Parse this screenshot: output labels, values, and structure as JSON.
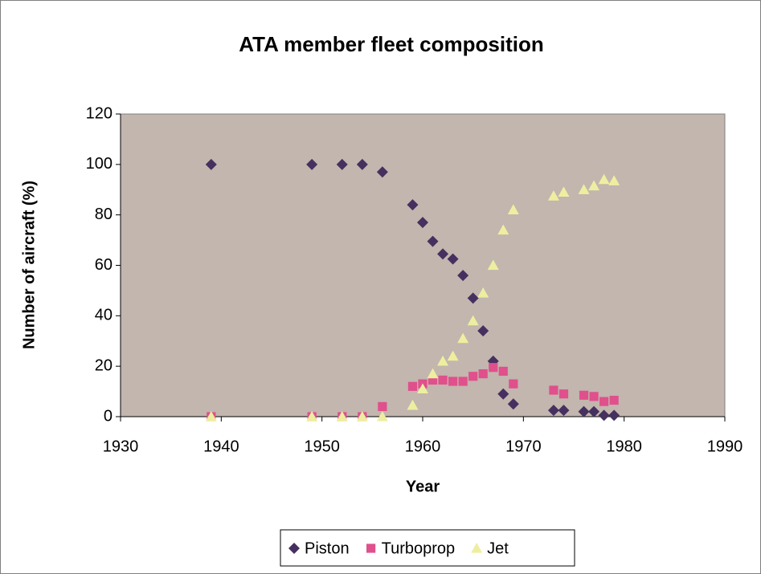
{
  "chart_data": {
    "type": "scatter",
    "title": "ATA member fleet composition",
    "x_label": "Year",
    "y_label": "Number of aircraft (%)",
    "x": [
      1939,
      1949,
      1952,
      1954,
      1956,
      1959,
      1960,
      1961,
      1962,
      1963,
      1964,
      1965,
      1966,
      1967,
      1968,
      1969,
      1973,
      1974,
      1976,
      1977,
      1978,
      1979
    ],
    "series": [
      {
        "name": "Piston",
        "color": "#45305f",
        "marker": "diamond",
        "values": [
          100,
          100,
          100,
          100,
          97,
          84,
          77,
          69.5,
          64.5,
          62.5,
          56,
          47,
          34,
          22,
          9,
          5,
          2.5,
          2.5,
          2,
          2,
          0.5,
          0.5
        ]
      },
      {
        "name": "Turboprop",
        "color": "#e0508c",
        "marker": "square",
        "values": [
          0,
          0,
          0,
          0,
          4,
          12,
          13,
          14.5,
          14.5,
          14,
          14,
          16,
          17,
          19.5,
          18,
          13,
          10.5,
          9,
          8.5,
          8,
          6,
          6.5
        ]
      },
      {
        "name": "Jet",
        "color": "#eeeea0",
        "marker": "triangle",
        "values": [
          0,
          0,
          0,
          0,
          0,
          4.5,
          11,
          17,
          22,
          24,
          31,
          38,
          49,
          60,
          74,
          82,
          87.5,
          89,
          90,
          91.5,
          94,
          93.5
        ]
      }
    ],
    "xlim": [
      1930,
      1990
    ],
    "xticks": [
      1930,
      1940,
      1950,
      1960,
      1970,
      1980,
      1990
    ],
    "ylim": [
      0,
      120
    ],
    "yticks": [
      0,
      20,
      40,
      60,
      80,
      100,
      120
    ],
    "grid": false,
    "legend": "bottom"
  }
}
